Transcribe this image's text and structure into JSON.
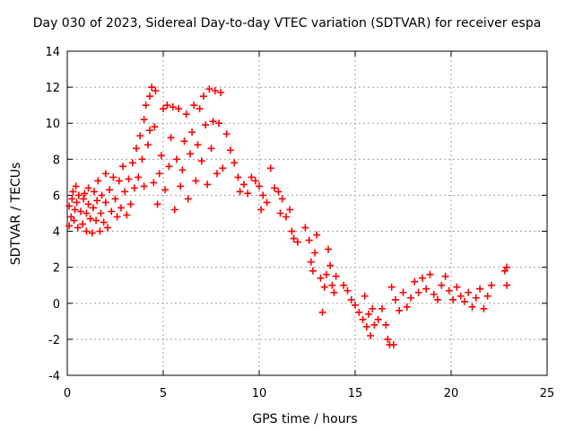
{
  "chart_data": {
    "type": "scatter",
    "title": "Day 030 of 2023, Sidereal Day-to-day VTEC variation (SDTVAR) for receiver espa",
    "xlabel": "GPS time / hours",
    "ylabel": "SDTVAR / TECUs",
    "xlim": [
      0,
      25
    ],
    "ylim": [
      -4,
      14
    ],
    "xticks": [
      0,
      5,
      10,
      15,
      20,
      25
    ],
    "yticks": [
      -4,
      -2,
      0,
      2,
      4,
      6,
      8,
      10,
      12,
      14
    ],
    "grid": true,
    "marker": "plus",
    "color": "#ff0000",
    "series": [
      {
        "name": "SDTVAR",
        "points": [
          [
            0.1,
            4.3
          ],
          [
            0.1,
            5.4
          ],
          [
            0.2,
            4.8
          ],
          [
            0.25,
            5.8
          ],
          [
            0.3,
            6.2
          ],
          [
            0.35,
            4.6
          ],
          [
            0.4,
            5.2
          ],
          [
            0.45,
            6.5
          ],
          [
            0.5,
            5.6
          ],
          [
            0.55,
            4.2
          ],
          [
            0.6,
            6.0
          ],
          [
            0.7,
            5.1
          ],
          [
            0.8,
            4.4
          ],
          [
            0.85,
            5.8
          ],
          [
            0.9,
            6.1
          ],
          [
            1.0,
            5.0
          ],
          [
            1.0,
            4.0
          ],
          [
            1.1,
            5.5
          ],
          [
            1.1,
            6.4
          ],
          [
            1.2,
            4.7
          ],
          [
            1.3,
            3.9
          ],
          [
            1.35,
            5.3
          ],
          [
            1.4,
            6.2
          ],
          [
            1.5,
            4.6
          ],
          [
            1.55,
            5.7
          ],
          [
            1.6,
            6.8
          ],
          [
            1.7,
            4.0
          ],
          [
            1.75,
            5.0
          ],
          [
            1.8,
            6.0
          ],
          [
            1.9,
            4.5
          ],
          [
            2.0,
            5.6
          ],
          [
            2.0,
            7.2
          ],
          [
            2.1,
            4.2
          ],
          [
            2.2,
            6.3
          ],
          [
            2.3,
            5.1
          ],
          [
            2.4,
            7.0
          ],
          [
            2.5,
            5.8
          ],
          [
            2.6,
            4.8
          ],
          [
            2.7,
            6.8
          ],
          [
            2.8,
            5.3
          ],
          [
            2.9,
            7.6
          ],
          [
            3.0,
            6.2
          ],
          [
            3.1,
            4.9
          ],
          [
            3.2,
            6.9
          ],
          [
            3.3,
            5.5
          ],
          [
            3.4,
            7.8
          ],
          [
            3.5,
            6.4
          ],
          [
            3.6,
            8.6
          ],
          [
            3.7,
            7.0
          ],
          [
            3.8,
            9.3
          ],
          [
            3.9,
            8.0
          ],
          [
            4.0,
            10.2
          ],
          [
            4.0,
            6.5
          ],
          [
            4.1,
            11.0
          ],
          [
            4.2,
            8.8
          ],
          [
            4.3,
            9.6
          ],
          [
            4.3,
            11.5
          ],
          [
            4.4,
            12.0
          ],
          [
            4.5,
            6.7
          ],
          [
            4.55,
            9.8
          ],
          [
            4.6,
            11.8
          ],
          [
            4.7,
            5.5
          ],
          [
            4.8,
            7.2
          ],
          [
            4.9,
            8.2
          ],
          [
            5.0,
            10.8
          ],
          [
            5.1,
            6.3
          ],
          [
            5.2,
            11.0
          ],
          [
            5.3,
            7.6
          ],
          [
            5.4,
            9.2
          ],
          [
            5.5,
            10.9
          ],
          [
            5.6,
            5.2
          ],
          [
            5.7,
            8.0
          ],
          [
            5.8,
            10.8
          ],
          [
            5.9,
            6.5
          ],
          [
            6.0,
            7.4
          ],
          [
            6.1,
            9.0
          ],
          [
            6.2,
            10.5
          ],
          [
            6.3,
            5.8
          ],
          [
            6.4,
            8.3
          ],
          [
            6.5,
            9.5
          ],
          [
            6.6,
            11.0
          ],
          [
            6.7,
            6.8
          ],
          [
            6.8,
            8.8
          ],
          [
            6.9,
            10.8
          ],
          [
            7.0,
            7.9
          ],
          [
            7.1,
            11.5
          ],
          [
            7.2,
            9.9
          ],
          [
            7.3,
            6.6
          ],
          [
            7.4,
            11.9
          ],
          [
            7.5,
            8.6
          ],
          [
            7.6,
            10.1
          ],
          [
            7.7,
            11.8
          ],
          [
            7.8,
            7.2
          ],
          [
            7.9,
            10.0
          ],
          [
            8.0,
            11.7
          ],
          [
            8.1,
            7.5
          ],
          [
            8.3,
            9.4
          ],
          [
            8.5,
            8.5
          ],
          [
            8.7,
            7.8
          ],
          [
            8.9,
            7.0
          ],
          [
            9.0,
            6.2
          ],
          [
            9.2,
            6.6
          ],
          [
            9.4,
            6.1
          ],
          [
            9.6,
            7.0
          ],
          [
            9.8,
            6.8
          ],
          [
            10.0,
            6.5
          ],
          [
            10.1,
            5.2
          ],
          [
            10.2,
            6.0
          ],
          [
            10.4,
            5.6
          ],
          [
            10.6,
            7.5
          ],
          [
            10.8,
            6.4
          ],
          [
            11.0,
            6.2
          ],
          [
            11.1,
            5.0
          ],
          [
            11.2,
            5.8
          ],
          [
            11.4,
            4.8
          ],
          [
            11.6,
            5.2
          ],
          [
            11.7,
            4.0
          ],
          [
            11.8,
            3.6
          ],
          [
            12.0,
            3.4
          ],
          [
            12.4,
            4.2
          ],
          [
            12.6,
            3.5
          ],
          [
            12.7,
            2.3
          ],
          [
            12.8,
            1.8
          ],
          [
            12.9,
            2.8
          ],
          [
            13.0,
            3.8
          ],
          [
            13.2,
            1.4
          ],
          [
            13.3,
            -0.5
          ],
          [
            13.4,
            0.9
          ],
          [
            13.5,
            1.6
          ],
          [
            13.6,
            3.0
          ],
          [
            13.7,
            2.1
          ],
          [
            13.8,
            1.0
          ],
          [
            13.9,
            0.6
          ],
          [
            14.0,
            1.5
          ],
          [
            14.4,
            1.0
          ],
          [
            14.6,
            0.7
          ],
          [
            14.8,
            0.2
          ],
          [
            15.0,
            -0.1
          ],
          [
            15.2,
            -0.5
          ],
          [
            15.4,
            -0.9
          ],
          [
            15.5,
            0.4
          ],
          [
            15.6,
            -1.3
          ],
          [
            15.7,
            -0.6
          ],
          [
            15.8,
            -1.8
          ],
          [
            15.9,
            -0.3
          ],
          [
            16.0,
            -1.2
          ],
          [
            16.2,
            -0.9
          ],
          [
            16.4,
            -0.3
          ],
          [
            16.6,
            -1.2
          ],
          [
            16.7,
            -2.0
          ],
          [
            16.8,
            -2.3
          ],
          [
            17.0,
            -2.3
          ],
          [
            16.9,
            0.9
          ],
          [
            17.1,
            0.2
          ],
          [
            17.3,
            -0.4
          ],
          [
            17.5,
            0.6
          ],
          [
            17.7,
            -0.2
          ],
          [
            17.9,
            0.3
          ],
          [
            18.1,
            1.2
          ],
          [
            18.3,
            0.6
          ],
          [
            18.5,
            1.4
          ],
          [
            18.7,
            0.8
          ],
          [
            18.9,
            1.6
          ],
          [
            19.1,
            0.5
          ],
          [
            19.3,
            0.2
          ],
          [
            19.5,
            1.0
          ],
          [
            19.7,
            1.5
          ],
          [
            19.9,
            0.7
          ],
          [
            20.1,
            0.2
          ],
          [
            20.3,
            0.9
          ],
          [
            20.5,
            0.4
          ],
          [
            20.7,
            0.1
          ],
          [
            20.9,
            0.6
          ],
          [
            21.1,
            -0.2
          ],
          [
            21.3,
            0.3
          ],
          [
            21.5,
            0.8
          ],
          [
            21.7,
            -0.3
          ],
          [
            21.9,
            0.4
          ],
          [
            22.1,
            1.0
          ],
          [
            22.8,
            1.8
          ],
          [
            22.9,
            2.0
          ],
          [
            22.9,
            1.0
          ]
        ]
      }
    ]
  }
}
